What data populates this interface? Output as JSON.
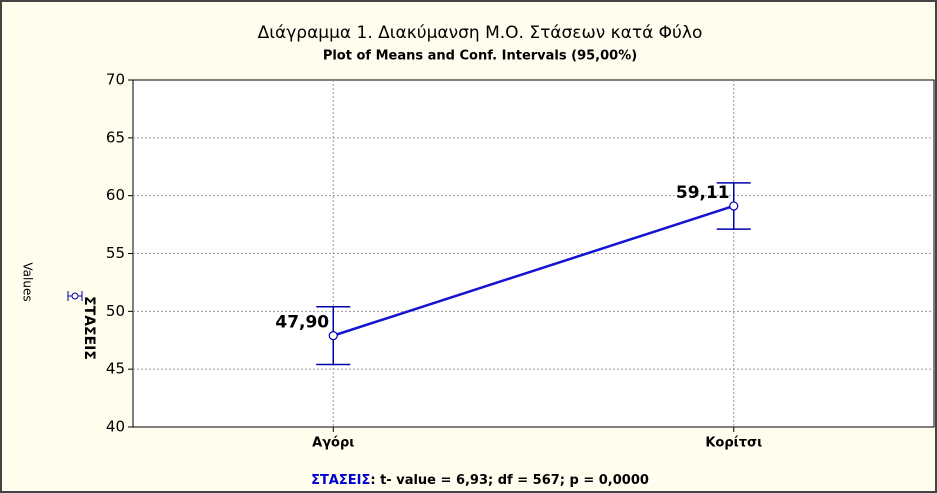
{
  "chart_data": {
    "type": "line",
    "title": "Διάγραμμα 1. Διακύμανση Μ.Ο. Στάσεων κατά Φύλο",
    "subtitle": "Plot of Means and Conf. Intervals (95,00%)",
    "y_label": "Values",
    "categories": [
      "Αγόρι",
      "Κορίτσι"
    ],
    "series": [
      {
        "name": "ΣΤΑΣΕΙΣ",
        "color": "#1414d2",
        "values": [
          47.9,
          59.11
        ],
        "value_labels": [
          "47,90",
          "59,11"
        ],
        "errors": [
          2.5,
          2.0
        ]
      }
    ],
    "annotation": ": t- value = 6,93; df = 567; p = 0,0000",
    "ylim": [
      40,
      70
    ],
    "yticks": [
      40,
      45,
      50,
      55,
      60,
      65,
      70
    ],
    "grid": true
  }
}
